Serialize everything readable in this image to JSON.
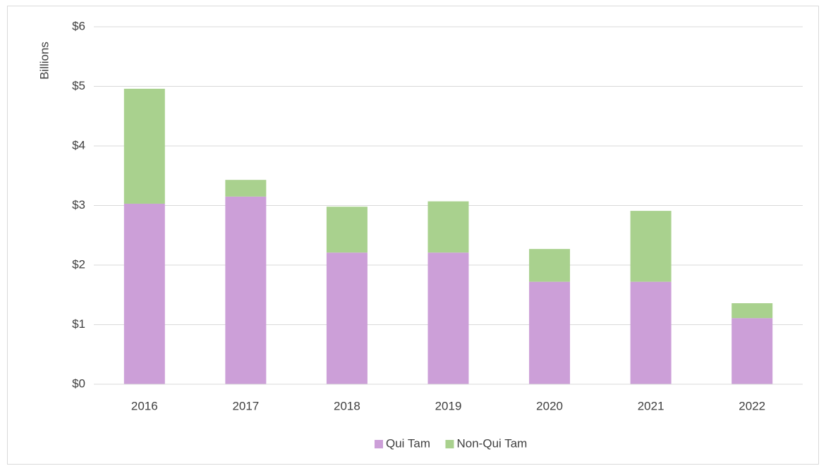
{
  "chart_data": {
    "type": "stacked_bar",
    "y_label": "Billions",
    "categories": [
      "2016",
      "2017",
      "2018",
      "2019",
      "2020",
      "2021",
      "2022"
    ],
    "series": [
      {
        "name": "Qui Tam",
        "color": "#cc9fd8",
        "values": [
          3.03,
          3.15,
          2.21,
          2.21,
          1.72,
          1.72,
          1.11
        ]
      },
      {
        "name": "Non-Qui Tam",
        "color": "#a9d18e",
        "values": [
          1.93,
          0.28,
          0.77,
          0.86,
          0.55,
          1.19,
          0.25
        ]
      }
    ],
    "ylim": [
      0,
      6
    ],
    "yticks": [
      {
        "value": 0,
        "label": "$0"
      },
      {
        "value": 1,
        "label": "$1"
      },
      {
        "value": 2,
        "label": "$2"
      },
      {
        "value": 3,
        "label": "$3"
      },
      {
        "value": 4,
        "label": "$4"
      },
      {
        "value": 5,
        "label": "$5"
      },
      {
        "value": 6,
        "label": "$6"
      }
    ],
    "grid": true,
    "legend": "bottom"
  }
}
